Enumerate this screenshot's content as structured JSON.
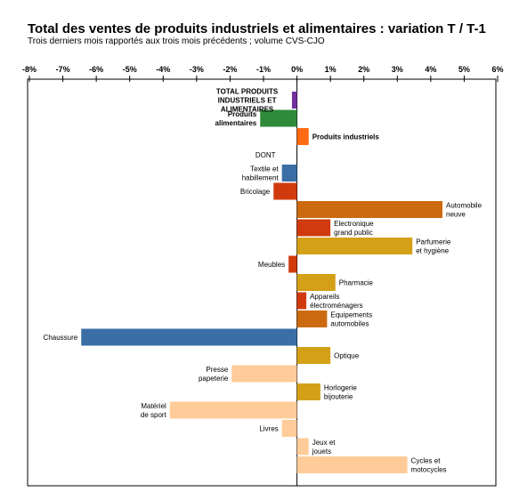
{
  "title": "Total des ventes de produits industriels et alimentaires : variation T / T-1",
  "subtitle": "Trois derniers mois rapportés aux trois mois précédents ; volume CVS-CJO",
  "chart_data": {
    "type": "bar",
    "orientation": "horizontal",
    "title": "Total des ventes de produits industriels et alimentaires : variation T / T-1",
    "subtitle": "Trois derniers mois rapportés aux trois mois précédents ; volume CVS-CJO",
    "xlim": [
      -8,
      6
    ],
    "xticks": [
      "-8%",
      "-7%",
      "-6%",
      "-5%",
      "-4%",
      "-3%",
      "-2%",
      "-1%",
      "0%",
      "1%",
      "2%",
      "3%",
      "4%",
      "5%",
      "6%"
    ],
    "grid": false,
    "categories": [
      {
        "lines": [
          "TOTAL PRODUITS",
          "INDUSTRIELS ET",
          "ALIMENTAIRES"
        ],
        "value": -0.15,
        "color": "#7030a0",
        "bold": true
      },
      {
        "lines": [
          "Produits",
          "alimentaires"
        ],
        "value": -1.1,
        "color": "#2e8b3a",
        "bold": true
      },
      {
        "lines": [
          "Produits industriels"
        ],
        "value": 0.35,
        "color": "#ff6a13",
        "bold": true
      },
      {
        "lines": [
          "DONT"
        ],
        "value": null,
        "color": null,
        "bold": false
      },
      {
        "lines": [
          "Textile et",
          "habillement"
        ],
        "value": -0.45,
        "color": "#3a6ea5",
        "bold": false
      },
      {
        "lines": [
          "Bricolage"
        ],
        "value": -0.7,
        "color": "#d03a0c",
        "bold": false
      },
      {
        "lines": [
          "Automobile",
          "neuve"
        ],
        "value": 4.35,
        "color": "#cc6a10",
        "bold": false
      },
      {
        "lines": [
          "Electronique",
          "grand public"
        ],
        "value": 1.0,
        "color": "#d03a0c",
        "bold": false
      },
      {
        "lines": [
          "Parfumerie",
          "et hygiène"
        ],
        "value": 3.45,
        "color": "#d4a017",
        "bold": false
      },
      {
        "lines": [
          "Meubles"
        ],
        "value": -0.25,
        "color": "#d03a0c",
        "bold": false
      },
      {
        "lines": [
          "Pharmacie"
        ],
        "value": 1.15,
        "color": "#d4a017",
        "bold": false
      },
      {
        "lines": [
          "Appareils",
          "électroménagers"
        ],
        "value": 0.28,
        "color": "#d03a0c",
        "bold": false
      },
      {
        "lines": [
          "Equipements",
          "automobiles"
        ],
        "value": 0.9,
        "color": "#cc6a10",
        "bold": false
      },
      {
        "lines": [
          "Chaussure"
        ],
        "value": -6.45,
        "color": "#3a6ea5",
        "bold": false
      },
      {
        "lines": [
          "Optique"
        ],
        "value": 1.0,
        "color": "#d4a017",
        "bold": false
      },
      {
        "lines": [
          "Presse",
          "papeterie"
        ],
        "value": -1.95,
        "color": "#ffcc99",
        "bold": false
      },
      {
        "lines": [
          "Horlogerie",
          "bijouterie"
        ],
        "value": 0.7,
        "color": "#d4a017",
        "bold": false
      },
      {
        "lines": [
          "Matériel",
          "de sport"
        ],
        "value": -3.8,
        "color": "#ffcc99",
        "bold": false
      },
      {
        "lines": [
          "Livres"
        ],
        "value": -0.45,
        "color": "#ffcc99",
        "bold": false
      },
      {
        "lines": [
          "Jeux et",
          "jouets"
        ],
        "value": 0.35,
        "color": "#ffcc99",
        "bold": false
      },
      {
        "lines": [
          "Cycles et",
          "motocycles"
        ],
        "value": 3.3,
        "color": "#ffcc99",
        "bold": false
      }
    ]
  }
}
